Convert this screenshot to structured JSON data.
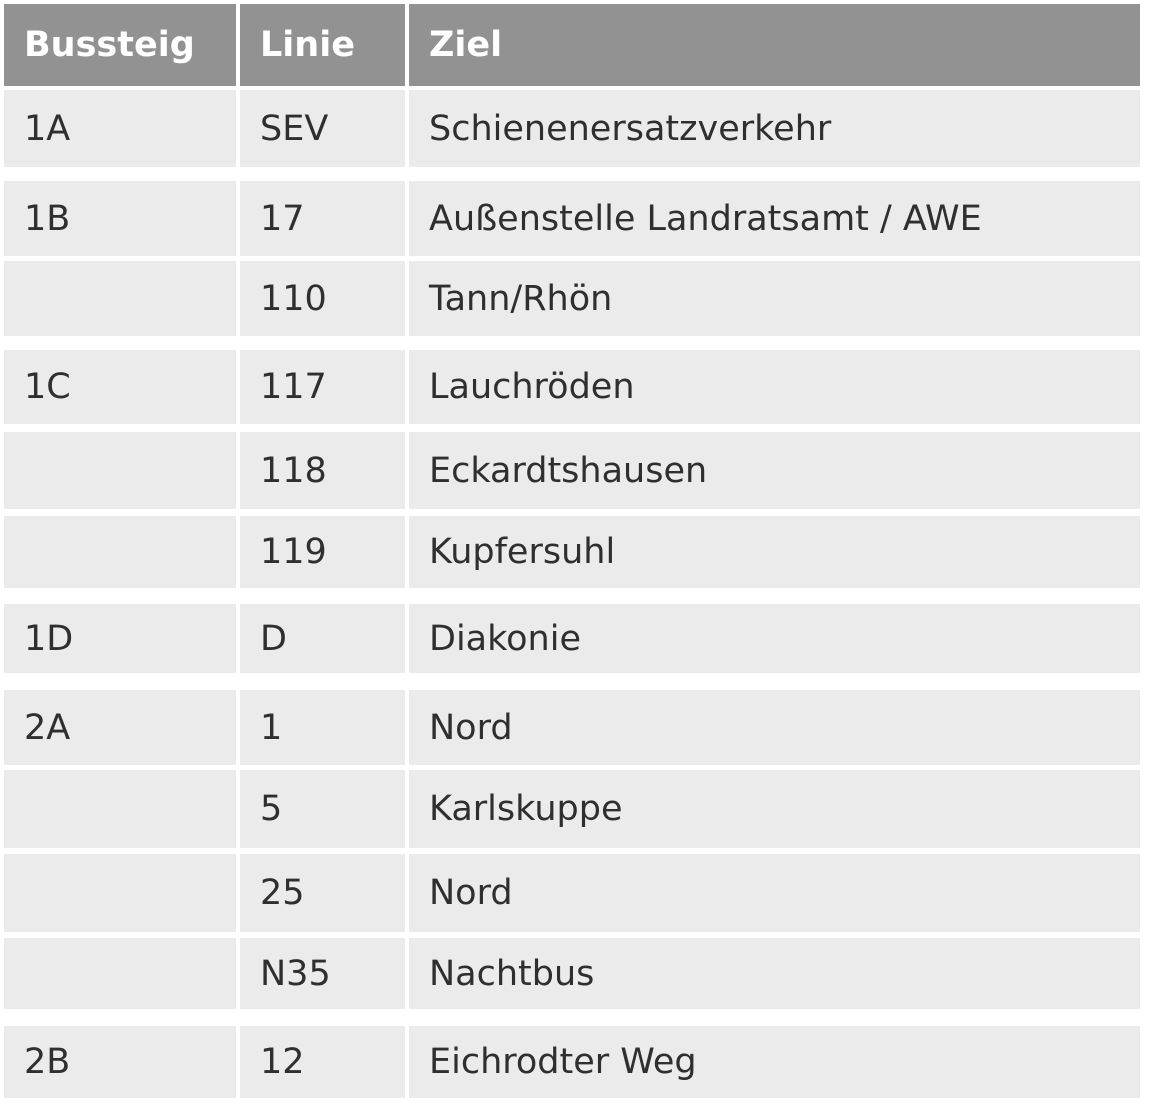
{
  "table": {
    "headers": {
      "platform": "Bussteig",
      "line": "Linie",
      "destination": "Ziel"
    },
    "rows": [
      {
        "platform": "1A",
        "line": "SEV",
        "destination": "Schienenersatzverkehr"
      },
      {
        "platform": "1B",
        "line": "17",
        "destination": "Außenstelle Landratsamt / AWE"
      },
      {
        "platform": "",
        "line": "110",
        "destination": "Tann/Rhön"
      },
      {
        "platform": "1C",
        "line": "117",
        "destination": "Lauchröden"
      },
      {
        "platform": "",
        "line": "118",
        "destination": "Eckardtshausen"
      },
      {
        "platform": "",
        "line": "119",
        "destination": "Kupfersuhl"
      },
      {
        "platform": "1D",
        "line": "D",
        "destination": "Diakonie"
      },
      {
        "platform": "2A",
        "line": "1",
        "destination": "Nord"
      },
      {
        "platform": "",
        "line": "5",
        "destination": "Karlskuppe"
      },
      {
        "platform": "",
        "line": "25",
        "destination": "Nord"
      },
      {
        "platform": "",
        "line": "N35",
        "destination": "Nachtbus"
      },
      {
        "platform": "2B",
        "line": "12",
        "destination": "Eichrodter Weg"
      }
    ]
  }
}
